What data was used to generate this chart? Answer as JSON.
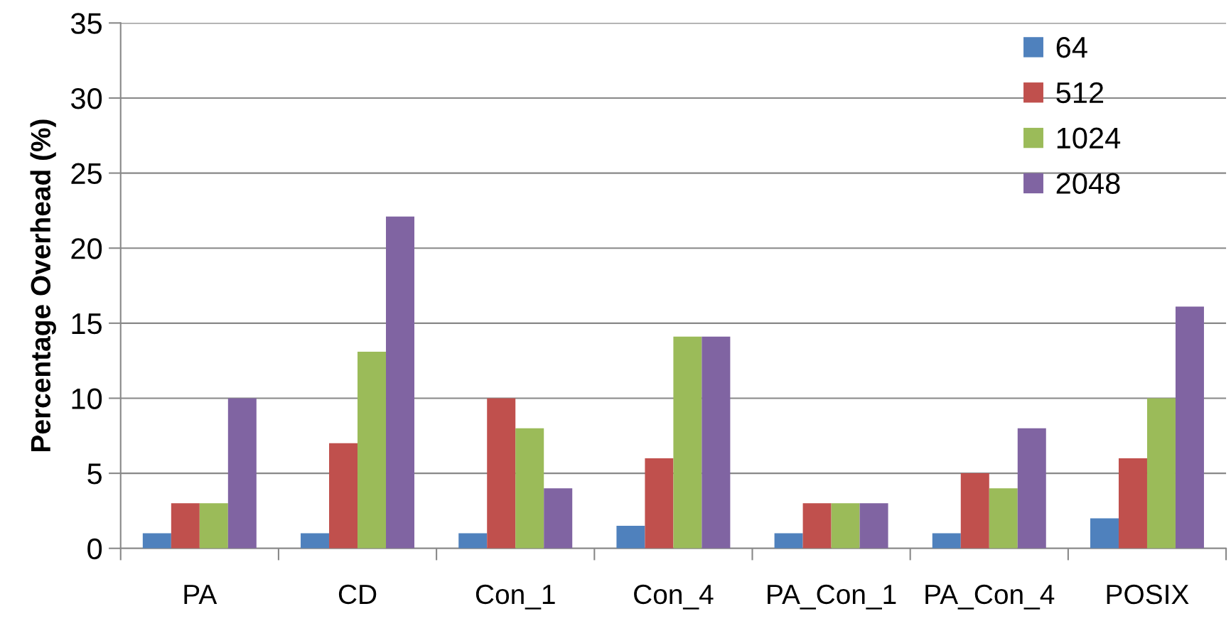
{
  "chart_data": {
    "type": "bar",
    "ylabel": "Percentage Overhead (%)",
    "categories": [
      "PA",
      "CD",
      "Con_1",
      "Con_4",
      "PA_Con_1",
      "PA_Con_4",
      "POSIX"
    ],
    "series": [
      {
        "name": "64",
        "color": "#4f81bd",
        "values": [
          1,
          1,
          1,
          1.5,
          1,
          1,
          2
        ]
      },
      {
        "name": "512",
        "color": "#c0504d",
        "values": [
          3,
          7,
          10,
          6,
          3,
          5,
          6
        ]
      },
      {
        "name": "1024",
        "color": "#9bbb59",
        "values": [
          3,
          13.1,
          8,
          14.1,
          3,
          4,
          10
        ]
      },
      {
        "name": "2048",
        "color": "#8064a2",
        "values": [
          10,
          22.1,
          4,
          14.1,
          3,
          8,
          16.1
        ]
      }
    ],
    "ylim": [
      0,
      35
    ],
    "yticks": [
      0,
      5,
      10,
      15,
      20,
      25,
      30,
      35
    ],
    "grid": "y",
    "legend": "top right"
  }
}
